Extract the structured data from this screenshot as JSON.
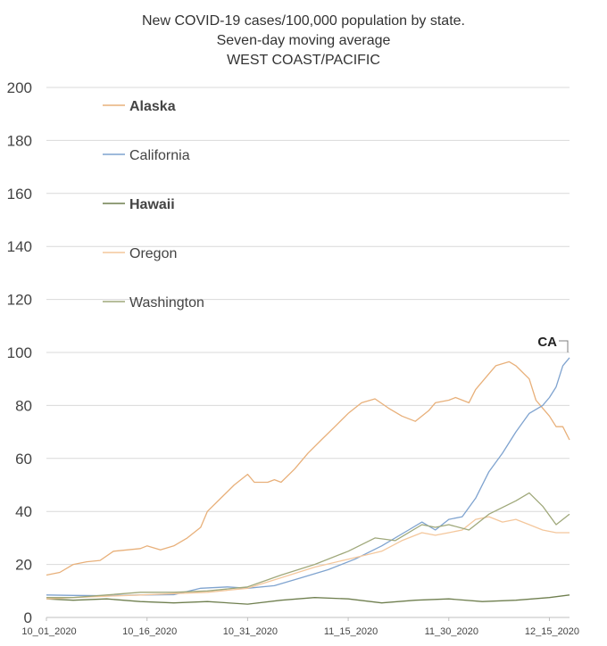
{
  "chart_data": {
    "type": "line",
    "title": [
      "New COVID-19 cases/100,000 population by state.",
      "Seven-day moving average",
      "WEST COAST/PACIFIC"
    ],
    "xlabel": "",
    "ylabel": "",
    "ylim": [
      0,
      200
    ],
    "yticks": [
      0,
      20,
      40,
      60,
      80,
      100,
      120,
      140,
      160,
      180,
      200
    ],
    "xlim": [
      "2020-10-01",
      "2020-12-18"
    ],
    "xticks": [
      {
        "date": "2020-10-01",
        "label": "10_01_2020"
      },
      {
        "date": "2020-10-16",
        "label": "10_16_2020"
      },
      {
        "date": "2020-10-31",
        "label": "10_31_2020"
      },
      {
        "date": "2020-11-15",
        "label": "11_15_2020"
      },
      {
        "date": "2020-11-30",
        "label": "11_30_2020"
      },
      {
        "date": "2020-12-15",
        "label": "12_15_2020"
      }
    ],
    "grid": true,
    "legend_position": "top-left",
    "annotations": [
      {
        "text": "CA",
        "series": "California",
        "date": "2020-12-18",
        "value": 98
      }
    ],
    "series": [
      {
        "name": "Alaska",
        "bold": true,
        "color": "#e8b07a",
        "points": [
          [
            "2020-10-01",
            16
          ],
          [
            "2020-10-03",
            17
          ],
          [
            "2020-10-05",
            20
          ],
          [
            "2020-10-07",
            21
          ],
          [
            "2020-10-09",
            21.5
          ],
          [
            "2020-10-11",
            25
          ],
          [
            "2020-10-13",
            25.5
          ],
          [
            "2020-10-15",
            26
          ],
          [
            "2020-10-16",
            27
          ],
          [
            "2020-10-18",
            25.5
          ],
          [
            "2020-10-20",
            27
          ],
          [
            "2020-10-22",
            30
          ],
          [
            "2020-10-24",
            34
          ],
          [
            "2020-10-25",
            40
          ],
          [
            "2020-10-27",
            45
          ],
          [
            "2020-10-29",
            50
          ],
          [
            "2020-10-31",
            54
          ],
          [
            "2020-11-01",
            51
          ],
          [
            "2020-11-03",
            51
          ],
          [
            "2020-11-04",
            52
          ],
          [
            "2020-11-05",
            51
          ],
          [
            "2020-11-07",
            56
          ],
          [
            "2020-11-09",
            62
          ],
          [
            "2020-11-11",
            67
          ],
          [
            "2020-11-13",
            72
          ],
          [
            "2020-11-15",
            77
          ],
          [
            "2020-11-17",
            81
          ],
          [
            "2020-11-19",
            82.5
          ],
          [
            "2020-11-21",
            79
          ],
          [
            "2020-11-23",
            76
          ],
          [
            "2020-11-25",
            74
          ],
          [
            "2020-11-27",
            78
          ],
          [
            "2020-11-28",
            81
          ],
          [
            "2020-11-30",
            82
          ],
          [
            "2020-12-01",
            83
          ],
          [
            "2020-12-03",
            81
          ],
          [
            "2020-12-04",
            86
          ],
          [
            "2020-12-06",
            92
          ],
          [
            "2020-12-07",
            95
          ],
          [
            "2020-12-09",
            96.5
          ],
          [
            "2020-12-10",
            95
          ],
          [
            "2020-12-12",
            90
          ],
          [
            "2020-12-13",
            82
          ],
          [
            "2020-12-14",
            79
          ],
          [
            "2020-12-15",
            76
          ],
          [
            "2020-12-16",
            72
          ],
          [
            "2020-12-17",
            72
          ],
          [
            "2020-12-18",
            67
          ]
        ]
      },
      {
        "name": "California",
        "bold": false,
        "color": "#7fa3cf",
        "points": [
          [
            "2020-10-01",
            8.5
          ],
          [
            "2020-10-05",
            8.3
          ],
          [
            "2020-10-10",
            8.2
          ],
          [
            "2020-10-15",
            8.5
          ],
          [
            "2020-10-20",
            8.6
          ],
          [
            "2020-10-24",
            11
          ],
          [
            "2020-10-28",
            11.5
          ],
          [
            "2020-10-31",
            11
          ],
          [
            "2020-11-04",
            12
          ],
          [
            "2020-11-08",
            15
          ],
          [
            "2020-11-12",
            18
          ],
          [
            "2020-11-16",
            22
          ],
          [
            "2020-11-20",
            27
          ],
          [
            "2020-11-24",
            33
          ],
          [
            "2020-11-26",
            36
          ],
          [
            "2020-11-28",
            33
          ],
          [
            "2020-11-30",
            37
          ],
          [
            "2020-12-02",
            38
          ],
          [
            "2020-12-04",
            45
          ],
          [
            "2020-12-06",
            55
          ],
          [
            "2020-12-08",
            62
          ],
          [
            "2020-12-10",
            70
          ],
          [
            "2020-12-12",
            77
          ],
          [
            "2020-12-14",
            80
          ],
          [
            "2020-12-15",
            83
          ],
          [
            "2020-12-16",
            87
          ],
          [
            "2020-12-17",
            95
          ],
          [
            "2020-12-18",
            98
          ]
        ]
      },
      {
        "name": "Hawaii",
        "bold": true,
        "color": "#6f7f4f",
        "points": [
          [
            "2020-10-01",
            7
          ],
          [
            "2020-10-05",
            6.5
          ],
          [
            "2020-10-10",
            7
          ],
          [
            "2020-10-15",
            6
          ],
          [
            "2020-10-20",
            5.5
          ],
          [
            "2020-10-25",
            6
          ],
          [
            "2020-10-31",
            5
          ],
          [
            "2020-11-05",
            6.5
          ],
          [
            "2020-11-10",
            7.5
          ],
          [
            "2020-11-15",
            7
          ],
          [
            "2020-11-20",
            5.5
          ],
          [
            "2020-11-25",
            6.5
          ],
          [
            "2020-11-30",
            7
          ],
          [
            "2020-12-05",
            6
          ],
          [
            "2020-12-10",
            6.5
          ],
          [
            "2020-12-15",
            7.5
          ],
          [
            "2020-12-18",
            8.5
          ]
        ]
      },
      {
        "name": "Oregon",
        "bold": false,
        "color": "#f4c79c",
        "points": [
          [
            "2020-10-01",
            7
          ],
          [
            "2020-10-05",
            7.5
          ],
          [
            "2020-10-10",
            8
          ],
          [
            "2020-10-15",
            8.5
          ],
          [
            "2020-10-20",
            9
          ],
          [
            "2020-10-25",
            9.5
          ],
          [
            "2020-10-31",
            11
          ],
          [
            "2020-11-05",
            15
          ],
          [
            "2020-11-10",
            19
          ],
          [
            "2020-11-15",
            22
          ],
          [
            "2020-11-20",
            25
          ],
          [
            "2020-11-23",
            29
          ],
          [
            "2020-11-26",
            32
          ],
          [
            "2020-11-28",
            31
          ],
          [
            "2020-11-30",
            32
          ],
          [
            "2020-12-02",
            33
          ],
          [
            "2020-12-04",
            37
          ],
          [
            "2020-12-06",
            38
          ],
          [
            "2020-12-08",
            36
          ],
          [
            "2020-12-10",
            37
          ],
          [
            "2020-12-12",
            35
          ],
          [
            "2020-12-14",
            33
          ],
          [
            "2020-12-16",
            32
          ],
          [
            "2020-12-18",
            32
          ]
        ]
      },
      {
        "name": "Washington",
        "bold": false,
        "color": "#9fa87a",
        "points": [
          [
            "2020-10-01",
            7.5
          ],
          [
            "2020-10-05",
            7.5
          ],
          [
            "2020-10-10",
            8.5
          ],
          [
            "2020-10-15",
            9.5
          ],
          [
            "2020-10-20",
            9.5
          ],
          [
            "2020-10-25",
            10
          ],
          [
            "2020-10-31",
            11.5
          ],
          [
            "2020-11-05",
            16
          ],
          [
            "2020-11-10",
            20
          ],
          [
            "2020-11-15",
            25
          ],
          [
            "2020-11-19",
            30
          ],
          [
            "2020-11-22",
            29
          ],
          [
            "2020-11-26",
            35
          ],
          [
            "2020-11-28",
            34
          ],
          [
            "2020-11-30",
            35
          ],
          [
            "2020-12-03",
            33
          ],
          [
            "2020-12-06",
            39
          ],
          [
            "2020-12-10",
            44
          ],
          [
            "2020-12-12",
            47
          ],
          [
            "2020-12-14",
            42
          ],
          [
            "2020-12-16",
            35
          ],
          [
            "2020-12-18",
            39
          ]
        ]
      }
    ]
  }
}
